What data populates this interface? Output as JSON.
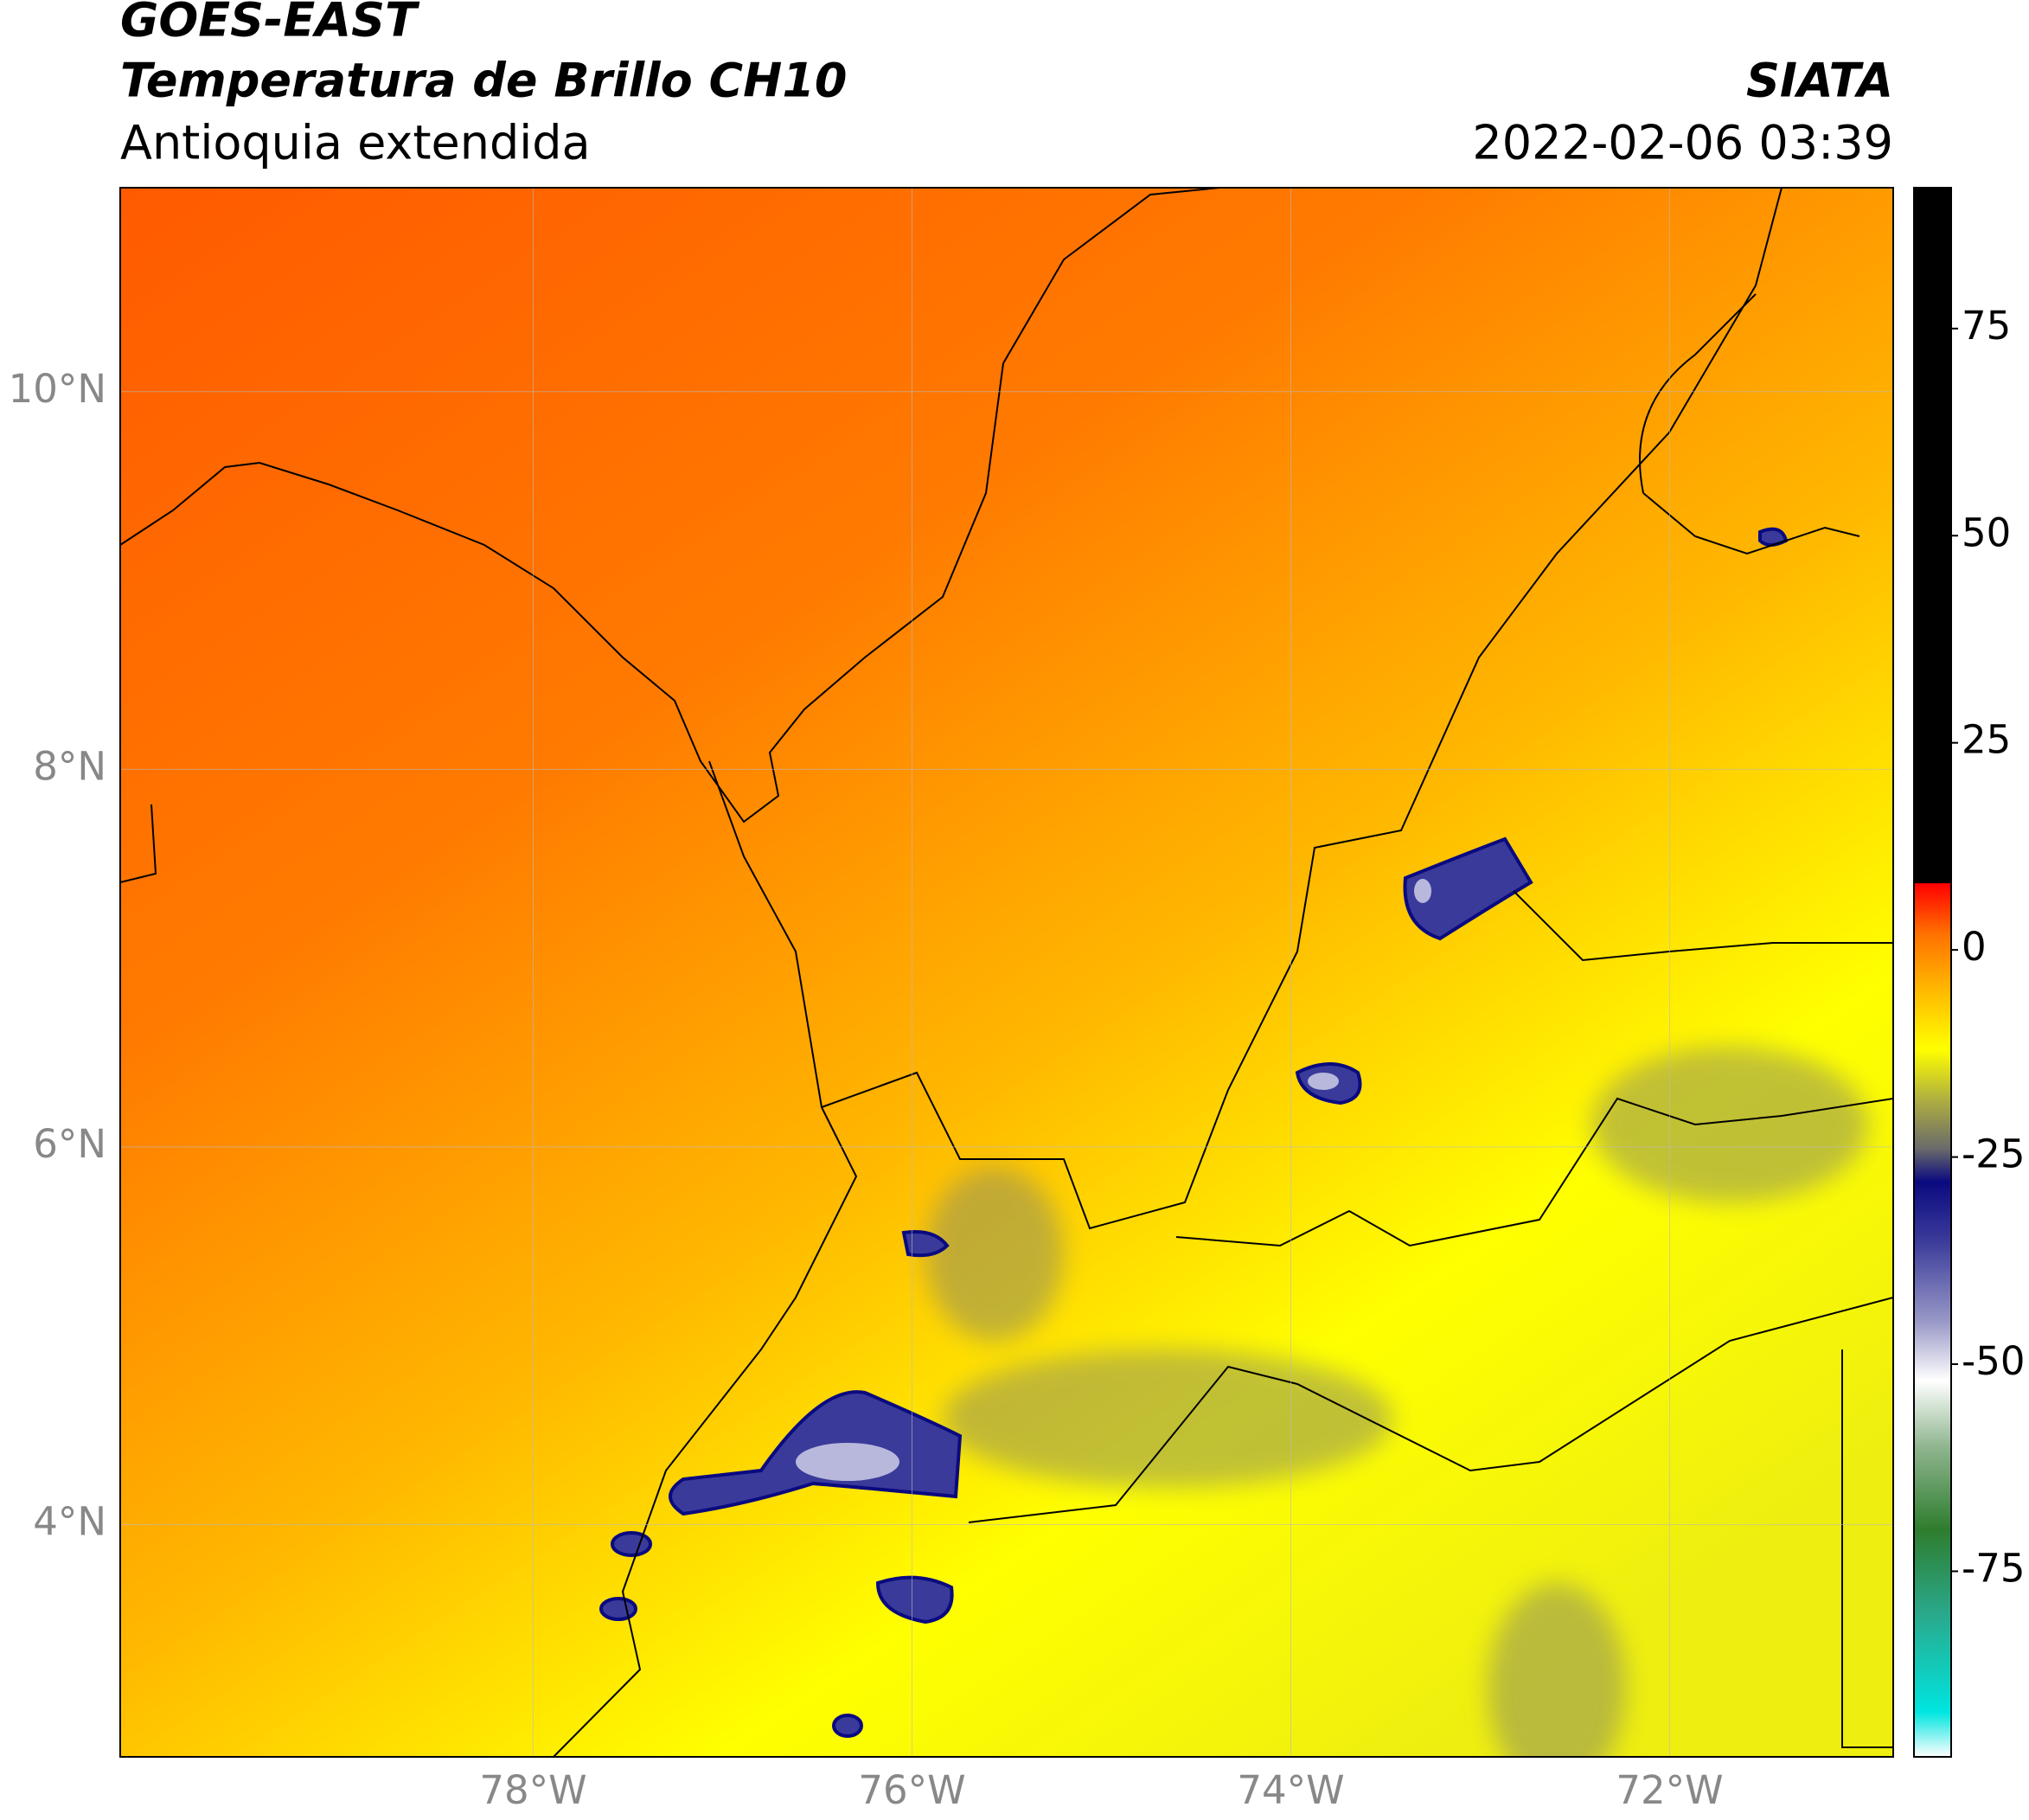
{
  "header": {
    "title": "GOES-EAST",
    "subtitle": "Temperatura de Brillo CH10",
    "region": "Antioquia extendida",
    "source": "SIATA",
    "datetime": "2022-02-06 03:39"
  },
  "map": {
    "xlim": [
      -80.18,
      -70.82
    ],
    "ylim": [
      2.77,
      11.08
    ],
    "grid": true,
    "xticks": [
      {
        "value": -78,
        "label": "78°W"
      },
      {
        "value": -76,
        "label": "76°W"
      },
      {
        "value": -74,
        "label": "74°W"
      },
      {
        "value": -72,
        "label": "72°W"
      }
    ],
    "yticks": [
      {
        "value": 4,
        "label": "4°N"
      },
      {
        "value": 6,
        "label": "6°N"
      },
      {
        "value": 8,
        "label": "8°N"
      },
      {
        "value": 10,
        "label": "10°N"
      }
    ]
  },
  "colorbar": {
    "lim": [
      -97.4,
      92
    ],
    "ticks": [
      75,
      50,
      25,
      0,
      -25,
      -50,
      -75
    ],
    "stops": [
      {
        "value": -97.4,
        "color": "#ffffff"
      },
      {
        "value": -92,
        "color": "#00e5e0"
      },
      {
        "value": -80,
        "color": "#2aa88a"
      },
      {
        "value": -70,
        "color": "#2e7d2e"
      },
      {
        "value": -60,
        "color": "#8fb58f"
      },
      {
        "value": -52,
        "color": "#ffffff"
      },
      {
        "value": -45,
        "color": "#9a9ac8"
      },
      {
        "value": -35,
        "color": "#3a3a9a"
      },
      {
        "value": -28,
        "color": "#0a0a80"
      },
      {
        "value": -24,
        "color": "#6a6a6a"
      },
      {
        "value": -18,
        "color": "#b0b040"
      },
      {
        "value": -12,
        "color": "#ffff00"
      },
      {
        "value": -4,
        "color": "#ffb000"
      },
      {
        "value": 2,
        "color": "#ff7000"
      },
      {
        "value": 8,
        "color": "#ff0000"
      },
      {
        "value": 8.1,
        "color": "#000000"
      },
      {
        "value": 92,
        "color": "#000000"
      }
    ]
  }
}
